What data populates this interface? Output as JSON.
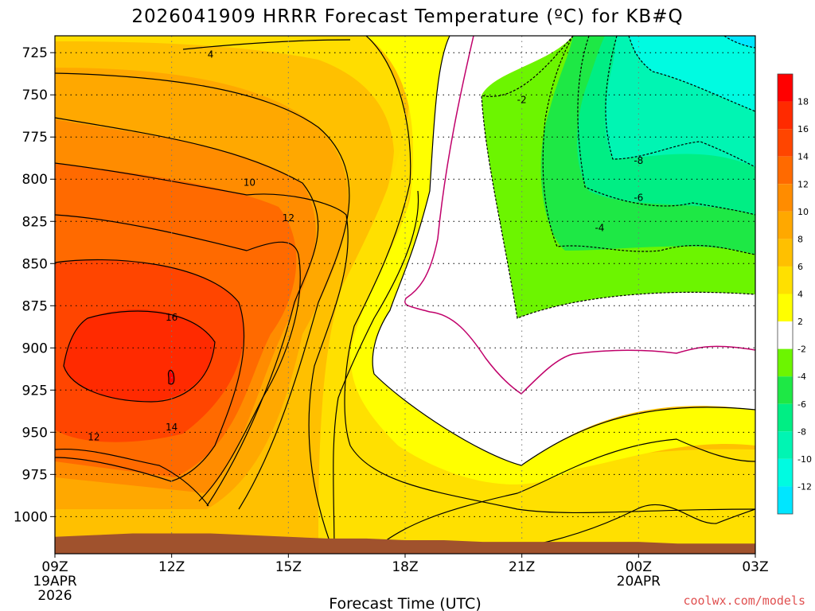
{
  "chart_data": {
    "type": "heatmap",
    "title": "2026041909 HRRR Forecast Temperature (ºC) for KB#Q",
    "xlabel": "Forecast Time (UTC)",
    "ylabel": "",
    "x_ticks": [
      {
        "label": "09Z",
        "hour": 0,
        "sub1": "19APR",
        "sub2": "2026"
      },
      {
        "label": "12Z",
        "hour": 3,
        "sub1": "",
        "sub2": ""
      },
      {
        "label": "15Z",
        "hour": 6,
        "sub1": "",
        "sub2": ""
      },
      {
        "label": "18Z",
        "hour": 9,
        "sub1": "",
        "sub2": ""
      },
      {
        "label": "21Z",
        "hour": 12,
        "sub1": "",
        "sub2": ""
      },
      {
        "label": "00Z",
        "hour": 15,
        "sub1": "20APR",
        "sub2": ""
      },
      {
        "label": "03Z",
        "hour": 18,
        "sub1": "",
        "sub2": ""
      }
    ],
    "y_ticks": [
      725,
      750,
      775,
      800,
      825,
      850,
      875,
      900,
      925,
      950,
      975,
      1000
    ],
    "xlim": [
      0,
      18
    ],
    "ylim": [
      715,
      1022
    ],
    "grid": true,
    "colorbar": {
      "levels": [
        -12,
        -10,
        -8,
        -6,
        -4,
        -2,
        2,
        4,
        6,
        8,
        10,
        12,
        14,
        16,
        18
      ],
      "colors": [
        "#00e6ff",
        "#00fbe1",
        "#00f5b3",
        "#00ee84",
        "#1ee845",
        "#6cf500",
        "#ffffff",
        "#ffff00",
        "#ffe000",
        "#ffc000",
        "#ffa800",
        "#ff8c00",
        "#ff6a00",
        "#ff4500",
        "#ff2a00",
        "#ff0000"
      ]
    },
    "contour_labels": [
      {
        "text": "4",
        "x": 4.0,
        "p": 726
      },
      {
        "text": "10",
        "x": 5.0,
        "p": 802
      },
      {
        "text": "12",
        "x": 6.0,
        "p": 823
      },
      {
        "text": "16",
        "x": 3.0,
        "p": 882
      },
      {
        "text": "14",
        "x": 3.0,
        "p": 947
      },
      {
        "text": "12",
        "x": 1.0,
        "p": 953
      },
      {
        "text": "-2",
        "x": 12.0,
        "p": 753
      },
      {
        "text": "-8",
        "x": 15.0,
        "p": 789
      },
      {
        "text": "-6",
        "x": 15.0,
        "p": 811
      },
      {
        "text": "-4",
        "x": 14.0,
        "p": 829
      }
    ],
    "surface_pressure": [
      1012,
      1011,
      1010,
      1010,
      1010,
      1011,
      1012,
      1013,
      1013,
      1014,
      1014,
      1015,
      1015,
      1015,
      1015,
      1015,
      1016,
      1016,
      1016
    ]
  },
  "credit": "coolwx.com/models"
}
